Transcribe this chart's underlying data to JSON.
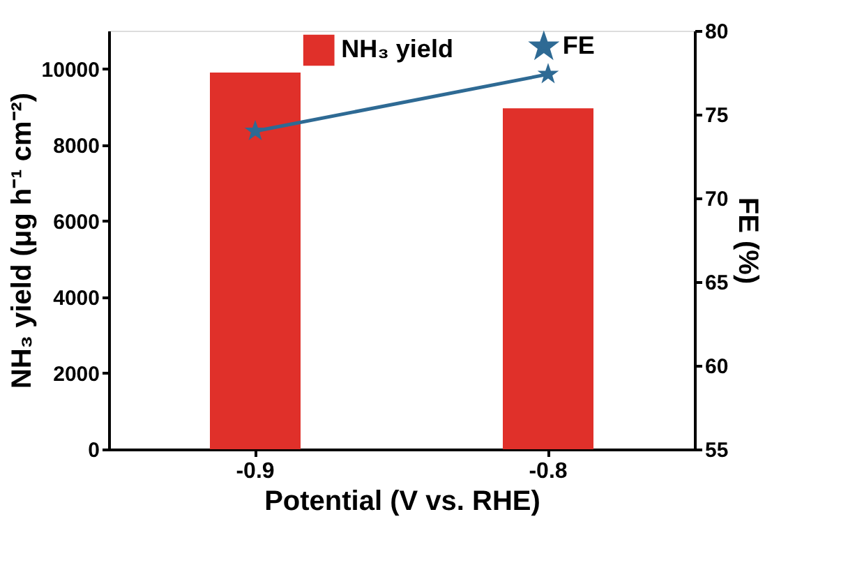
{
  "chart_data": {
    "type": "bar",
    "categories": [
      "-0.9",
      "-0.8"
    ],
    "xlabel": "Potential (V vs. RHE)",
    "ylabel": "NH₃ yield (μg h⁻¹ cm⁻²)",
    "y2label": "FE (%)",
    "series": [
      {
        "name": "NH₃ yield",
        "type": "bar",
        "color": "#e0302a",
        "values": [
          9900,
          8960
        ]
      },
      {
        "name": "FE",
        "type": "line",
        "axis": "y2",
        "color": "#2e6a94",
        "marker": "star",
        "values": [
          74.0,
          77.4
        ]
      }
    ],
    "ylim": [
      0,
      11000
    ],
    "yticks": [
      0,
      2000,
      4000,
      6000,
      8000,
      10000
    ],
    "y2lim": [
      55,
      80
    ],
    "y2ticks": [
      55,
      60,
      65,
      70,
      75,
      80
    ],
    "grid": false,
    "legend": "top"
  }
}
